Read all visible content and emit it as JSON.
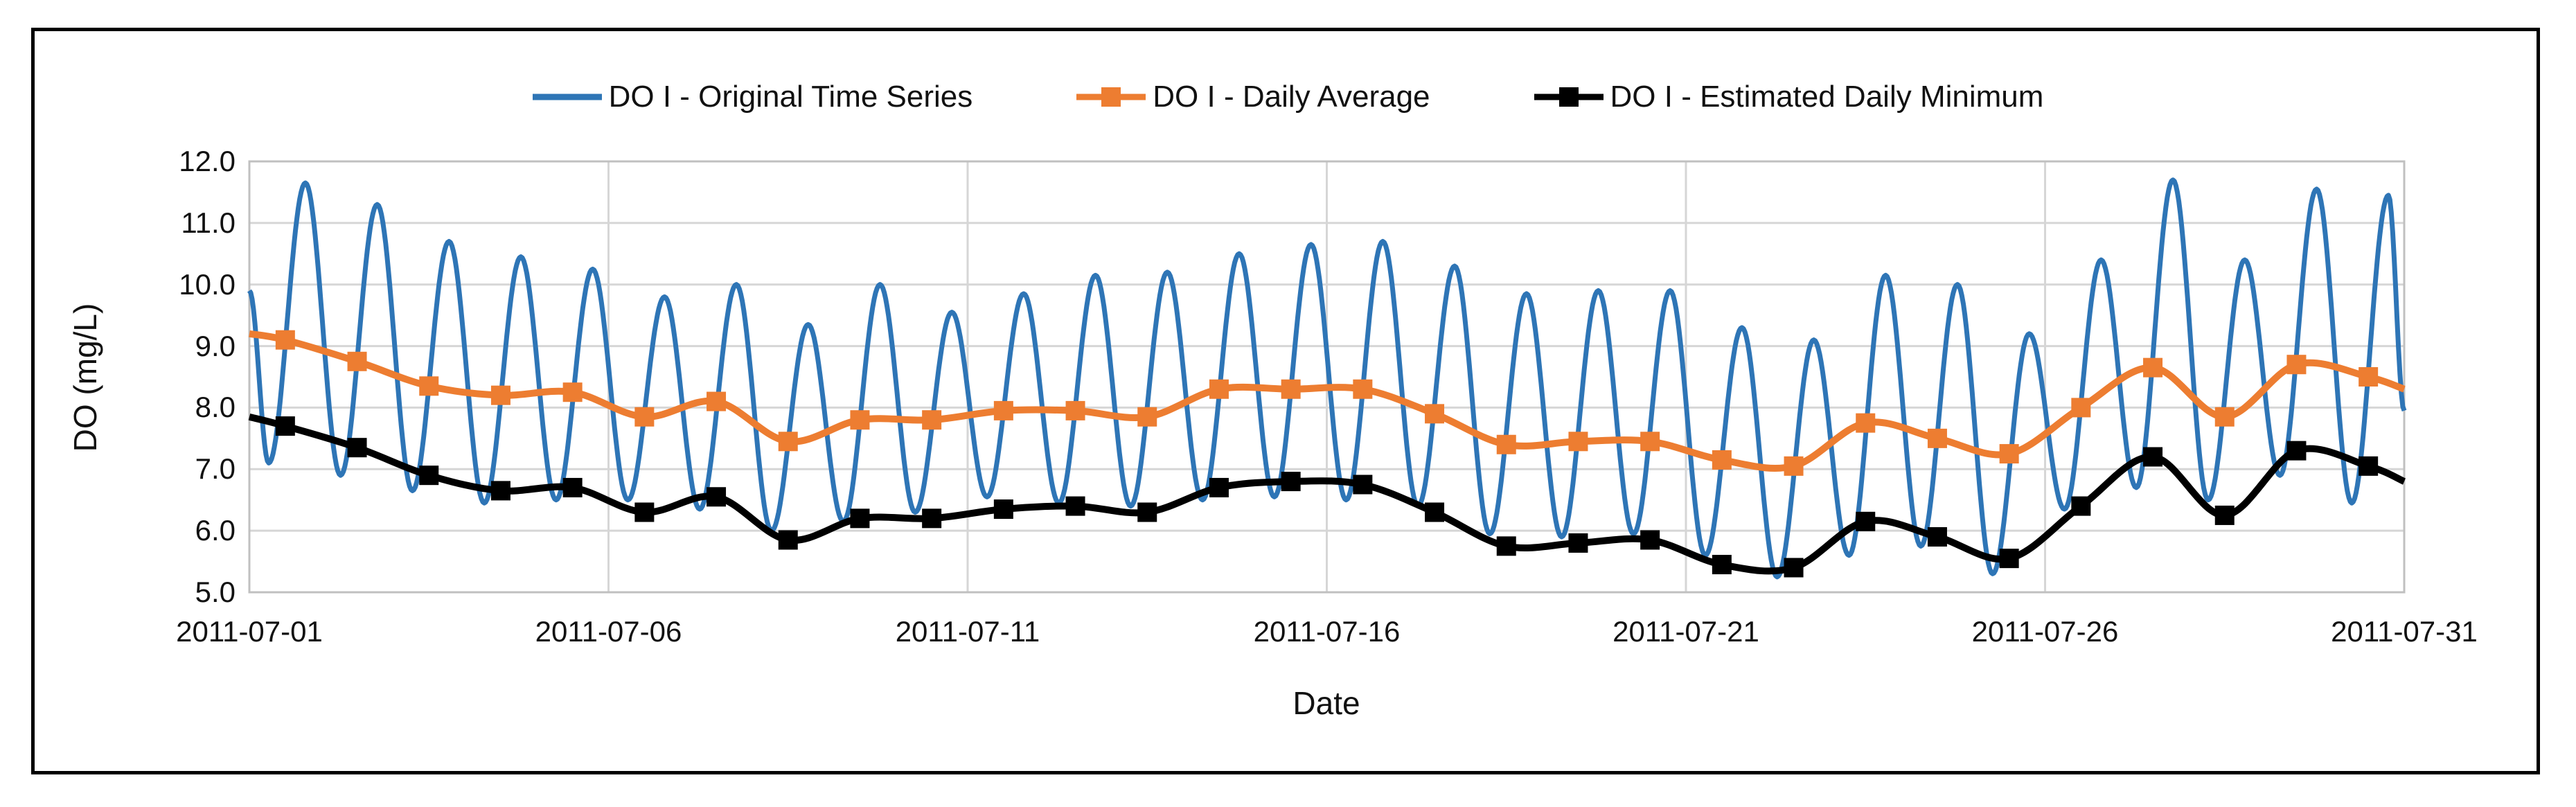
{
  "chart_data": {
    "type": "line",
    "title": "",
    "xlabel": "Date",
    "ylabel": "DO (mg/L)",
    "ylim": [
      5.0,
      12.0
    ],
    "grid": "on",
    "legend_position": "top-center",
    "y_tick_labels": [
      "12.0",
      "11.0",
      "10.0",
      "9.0",
      "8.0",
      "7.0",
      "6.0",
      "5.0"
    ],
    "x_tick_labels": [
      "2011-07-01",
      "2011-07-06",
      "2011-07-11",
      "2011-07-16",
      "2011-07-21",
      "2011-07-26",
      "2011-07-31"
    ],
    "x_range_days": 30,
    "dates": [
      "2011-07-01",
      "2011-07-02",
      "2011-07-03",
      "2011-07-04",
      "2011-07-05",
      "2011-07-06",
      "2011-07-07",
      "2011-07-08",
      "2011-07-09",
      "2011-07-10",
      "2011-07-11",
      "2011-07-12",
      "2011-07-13",
      "2011-07-14",
      "2011-07-15",
      "2011-07-16",
      "2011-07-17",
      "2011-07-18",
      "2011-07-19",
      "2011-07-20",
      "2011-07-21",
      "2011-07-22",
      "2011-07-23",
      "2011-07-24",
      "2011-07-25",
      "2011-07-26",
      "2011-07-27",
      "2011-07-28",
      "2011-07-29",
      "2011-07-30"
    ],
    "series": [
      {
        "name": "DO I - Original Time Series",
        "color": "#2E75B6",
        "marker": "none",
        "kind": "diel-cycle",
        "start_value": 9.9,
        "end_value": 7.95,
        "daily_peak": [
          11.65,
          11.3,
          10.7,
          10.45,
          10.25,
          9.8,
          10.0,
          9.35,
          10.0,
          9.55,
          9.85,
          10.15,
          10.2,
          10.5,
          10.65,
          10.7,
          10.3,
          9.85,
          9.9,
          9.9,
          9.3,
          9.1,
          10.15,
          10.0,
          9.2,
          10.4,
          11.7,
          10.4,
          11.55,
          11.45
        ],
        "daily_trough": [
          7.1,
          6.9,
          6.65,
          6.45,
          6.5,
          6.5,
          6.35,
          6.0,
          6.15,
          6.3,
          6.55,
          6.45,
          6.4,
          6.5,
          6.55,
          6.5,
          6.4,
          5.95,
          5.9,
          5.95,
          5.6,
          5.25,
          5.6,
          5.75,
          5.3,
          6.35,
          6.7,
          6.5,
          6.9,
          6.45
        ]
      },
      {
        "name": "DO I - Daily Average",
        "color": "#ED7D31",
        "marker": "square",
        "kind": "daily",
        "start_value": 9.2,
        "end_value": 8.3,
        "values": [
          9.1,
          8.75,
          8.35,
          8.2,
          8.25,
          7.85,
          8.1,
          7.45,
          7.8,
          7.8,
          7.95,
          7.95,
          7.85,
          8.3,
          8.3,
          8.3,
          7.9,
          7.4,
          7.45,
          7.45,
          7.15,
          7.05,
          7.75,
          7.5,
          7.25,
          8.0,
          8.65,
          7.85,
          8.7,
          8.5
        ]
      },
      {
        "name": "DO I - Estimated Daily Minimum",
        "color": "#000000",
        "marker": "square",
        "kind": "daily",
        "start_value": 7.85,
        "end_value": 6.8,
        "values": [
          7.7,
          7.35,
          6.9,
          6.65,
          6.7,
          6.3,
          6.55,
          5.85,
          6.2,
          6.2,
          6.35,
          6.4,
          6.3,
          6.7,
          6.8,
          6.75,
          6.3,
          5.75,
          5.8,
          5.85,
          5.45,
          5.4,
          6.15,
          5.9,
          5.55,
          6.4,
          7.2,
          6.25,
          7.3,
          7.05
        ]
      }
    ],
    "colors": {
      "gridline": "#D6D6D6",
      "plot_border": "#C0C0C0",
      "figure_border": "#000000",
      "text": "#111111"
    }
  }
}
